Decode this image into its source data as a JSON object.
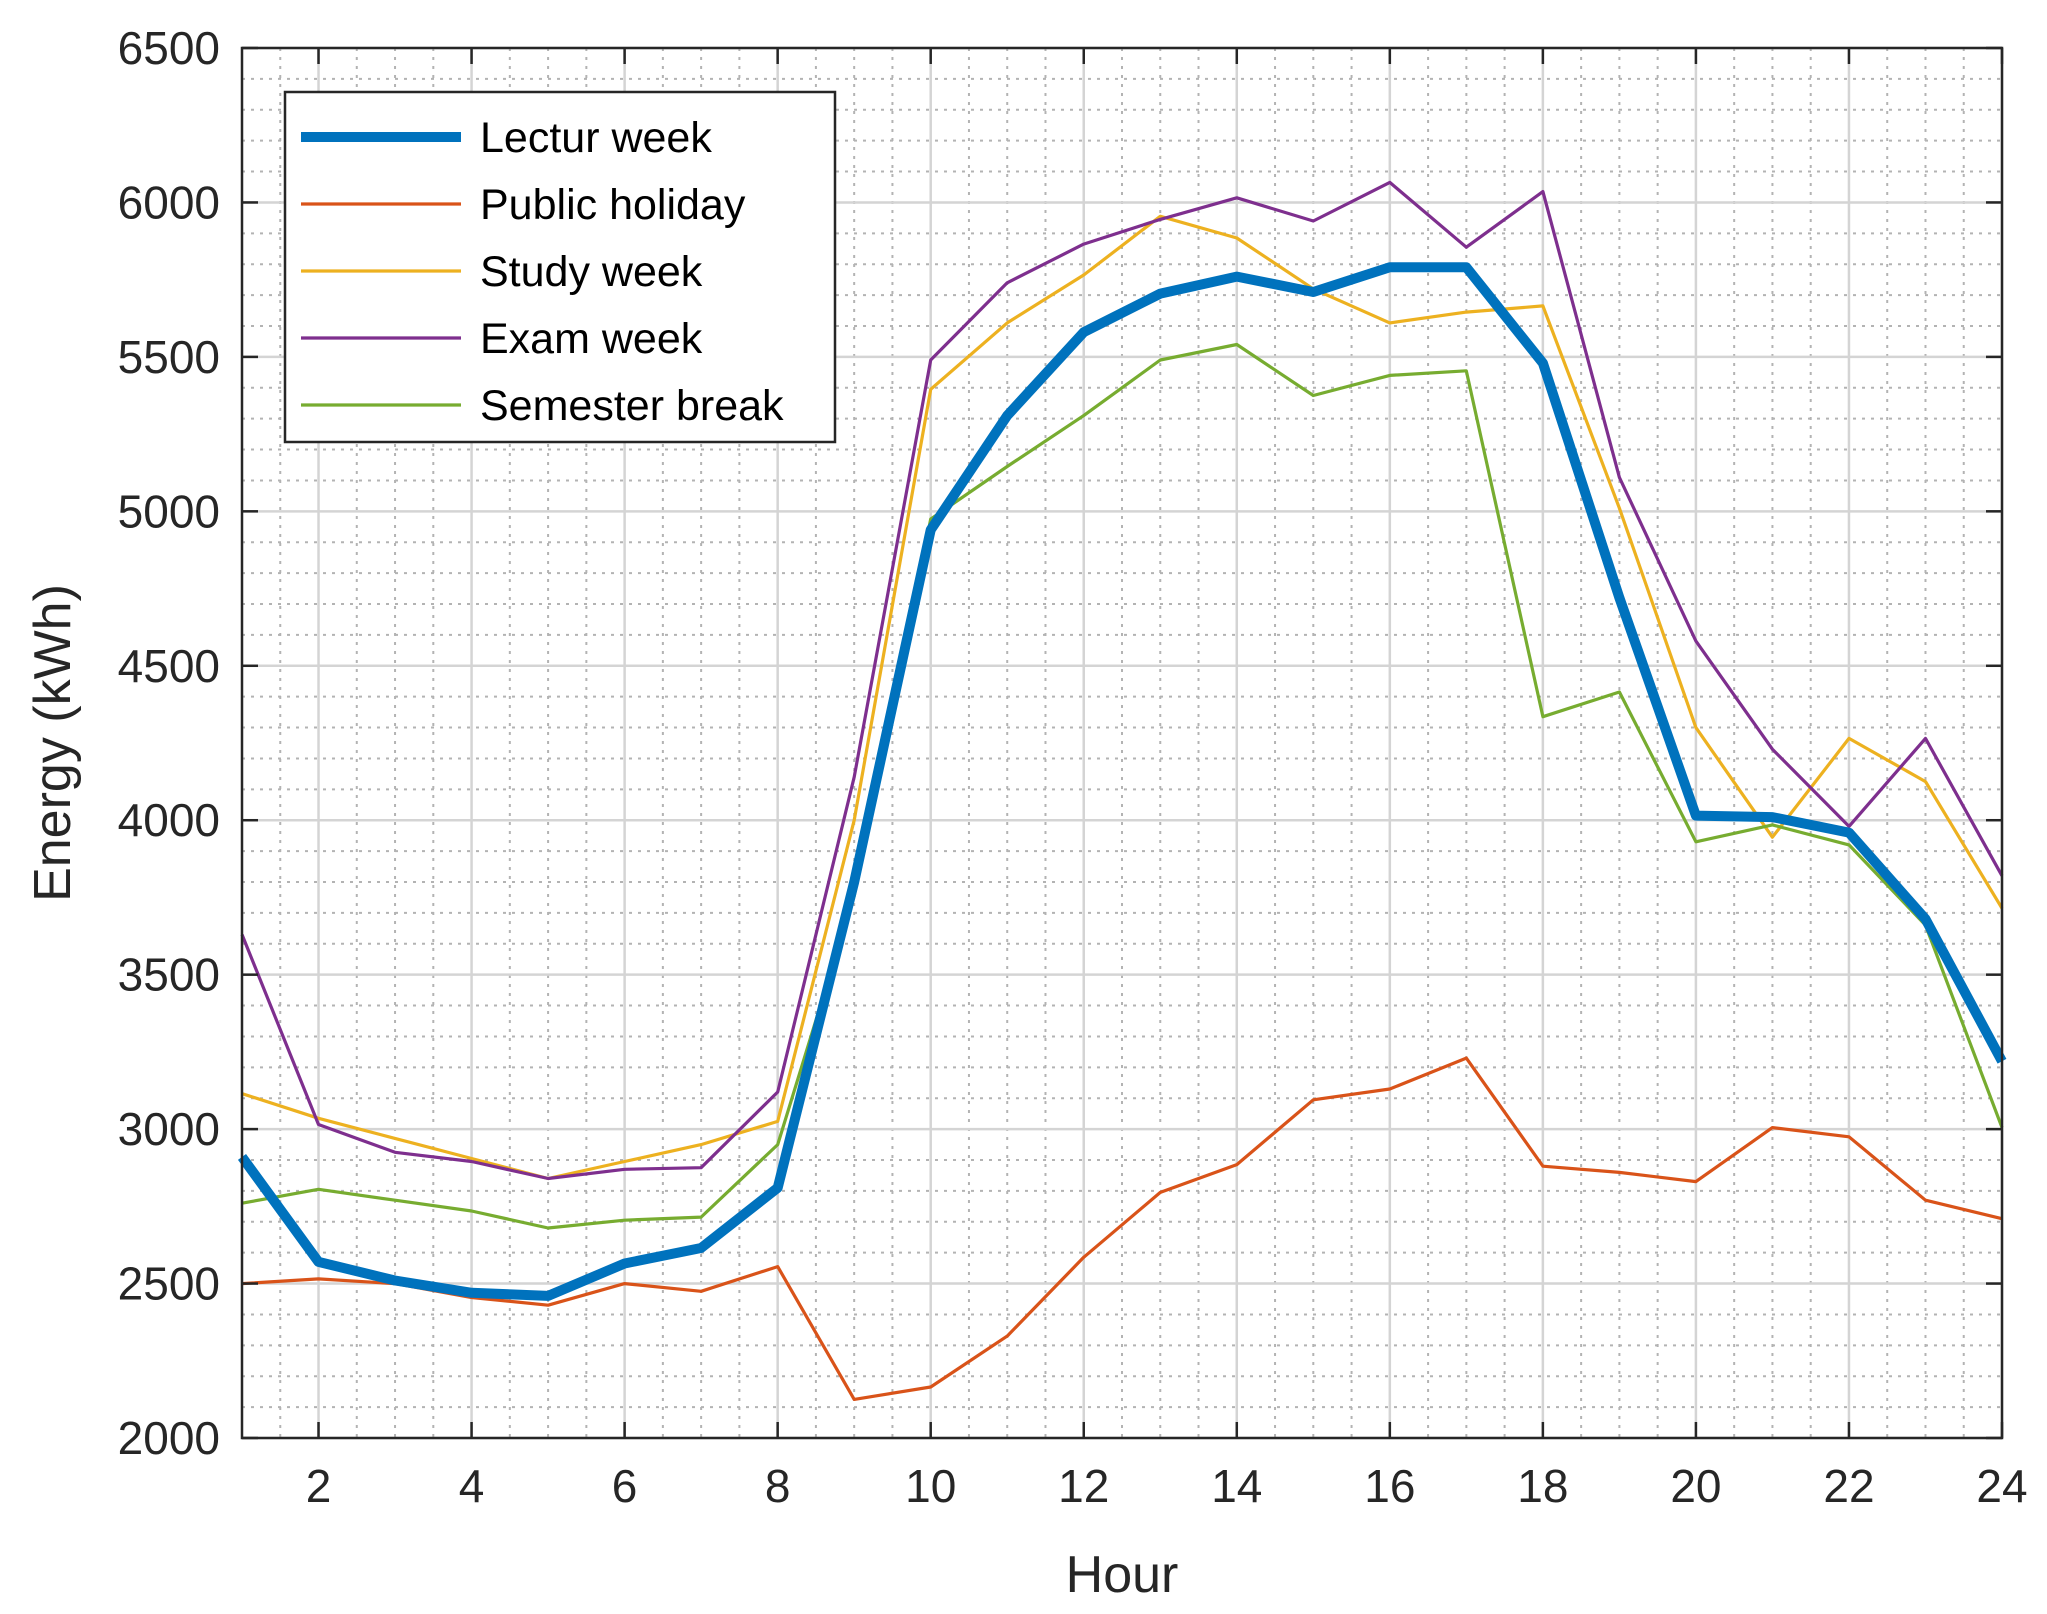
{
  "chart_data": {
    "type": "line",
    "title": "",
    "xlabel": "Hour",
    "ylabel": "Energy (kWh)",
    "xlim": [
      1,
      24
    ],
    "ylim": [
      2000,
      6500
    ],
    "xticks": [
      "2",
      "4",
      "6",
      "8",
      "10",
      "12",
      "14",
      "16",
      "18",
      "20",
      "22",
      "24"
    ],
    "yticks": [
      "2000",
      "2500",
      "3000",
      "3500",
      "4000",
      "4500",
      "5000",
      "5500",
      "6000",
      "6500"
    ],
    "grid": true,
    "minor_grid": true,
    "legend_position": "top-left",
    "x": [
      1,
      2,
      3,
      4,
      5,
      6,
      7,
      8,
      9,
      10,
      11,
      12,
      13,
      14,
      15,
      16,
      17,
      18,
      19,
      20,
      21,
      22,
      23,
      24
    ],
    "series": [
      {
        "name": "Lectur week",
        "color": "#0072BD",
        "weight": "bold",
        "values": [
          2910,
          2570,
          2510,
          2470,
          2460,
          2565,
          2615,
          2810,
          3800,
          4940,
          5310,
          5580,
          5705,
          5760,
          5710,
          5790,
          5790,
          5480,
          4720,
          4015,
          4010,
          3960,
          3680,
          3220
        ]
      },
      {
        "name": "Public holiday",
        "color": "#D95319",
        "weight": "normal",
        "values": [
          2500,
          2515,
          2500,
          2455,
          2430,
          2500,
          2475,
          2555,
          2125,
          2165,
          2330,
          2585,
          2795,
          2885,
          3095,
          3130,
          3230,
          2880,
          2860,
          2830,
          3005,
          2975,
          2770,
          2710
        ]
      },
      {
        "name": "Study week",
        "color": "#EDB120",
        "weight": "normal",
        "values": [
          3115,
          3035,
          2970,
          2905,
          2840,
          2895,
          2950,
          3025,
          4000,
          5395,
          5610,
          5765,
          5955,
          5885,
          5720,
          5610,
          5645,
          5665,
          5010,
          4300,
          3945,
          4265,
          4125,
          3715
        ]
      },
      {
        "name": "Exam week",
        "color": "#7E2F8E",
        "weight": "normal",
        "values": [
          3630,
          3015,
          2925,
          2895,
          2840,
          2870,
          2875,
          3120,
          4140,
          5490,
          5740,
          5865,
          5945,
          6015,
          5940,
          6065,
          5855,
          6035,
          5110,
          4580,
          4230,
          3980,
          4265,
          3820
        ]
      },
      {
        "name": "Semester break",
        "color": "#77AC30",
        "weight": "normal",
        "values": [
          2760,
          2805,
          2770,
          2735,
          2680,
          2705,
          2715,
          2950,
          3755,
          4975,
          5145,
          5310,
          5490,
          5540,
          5375,
          5440,
          5455,
          4335,
          4415,
          3930,
          3985,
          3920,
          3660,
          3005
        ]
      }
    ]
  }
}
